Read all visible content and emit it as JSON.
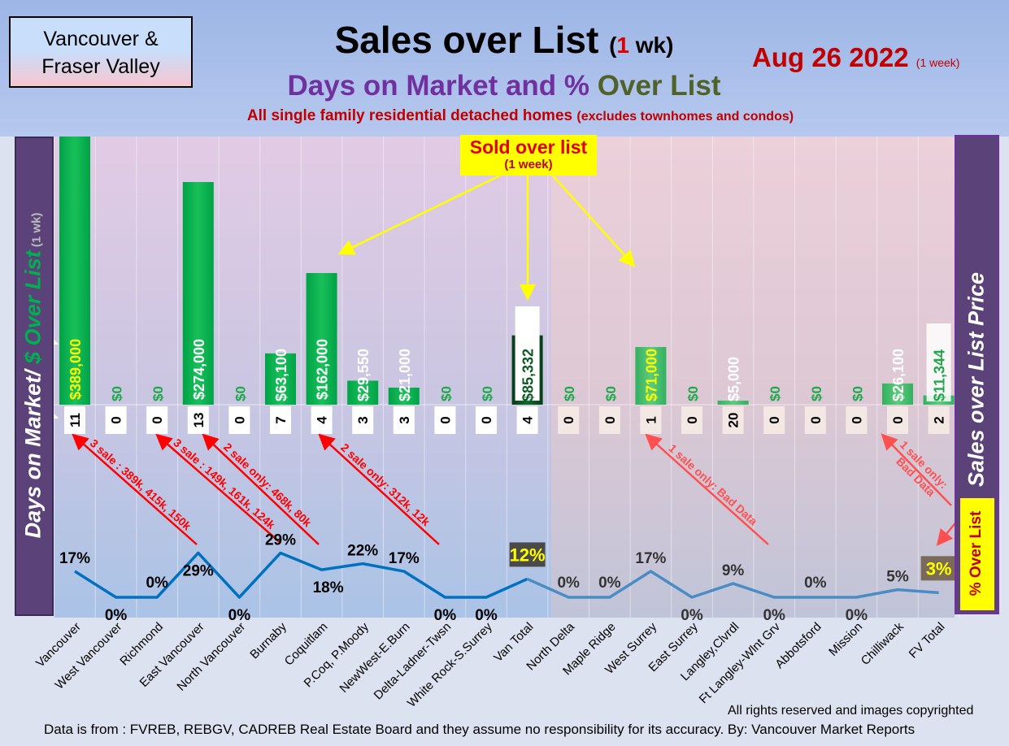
{
  "header": {
    "region": [
      "Vancouver &",
      "Fraser Valley"
    ],
    "title_main": "Sales over List",
    "title_open": "(",
    "title_num": "1",
    "title_close": " wk)",
    "subtitle_a": "Days on Market and % ",
    "subtitle_b": "Over List",
    "date": "Aug 26  2022",
    "date_note": "(1 week)",
    "note_main": "All single family residential detached homes ",
    "note_sub": "(excludes townhomes and condos)"
  },
  "side_labels": {
    "left_a": "Days on Market/ ",
    "left_b": "$ Over List",
    "left_c": " (1 wk)",
    "right": "Sales over List Price",
    "pct": "% Over List"
  },
  "callout": {
    "main": "Sold over list",
    "sub": "(1 week)"
  },
  "colors": {
    "bar_green": "#00b050",
    "van_total": "#0b5a22",
    "line_blue": "#0070c0",
    "annotation_red": "#ff0000",
    "callout_yellow": "#ffff00"
  },
  "chart_data": {
    "type": "bar",
    "categories": [
      "Vancouver",
      "West Vancouver",
      "Richmond",
      "East Vancouver",
      "North Vancouver",
      "Burnaby",
      "Coquitlam",
      "P.Coq, P.Moody",
      "NewWest-E.Burn",
      "Delta-Ladner-Twsn",
      "White Rock-S.Surrey",
      "Van Total",
      "North Delta",
      "Maple Ridge",
      "West Surrey",
      "East Surrey",
      "Langley,Clvrdl",
      "Ft Langley-Wlnt Grv",
      "Abbotsford",
      "Mission",
      "Chilliwack",
      "FV Total"
    ],
    "series": [
      {
        "values": [
          389000,
          0,
          0,
          274000,
          0,
          63100,
          162000,
          29550,
          21000,
          0,
          0,
          85332,
          0,
          0,
          71000,
          0,
          5000,
          0,
          0,
          0,
          26100,
          11344
        ],
        "labels": [
          "$389,000",
          "$0",
          "$0",
          "$274,000",
          "$0",
          "$63,100",
          "$162,000",
          "$29,550",
          "$21,000",
          "$0",
          "$0",
          "$85,332",
          "$0",
          "$0",
          "$71,000",
          "$0",
          "$5,000",
          "$0",
          "$0",
          "$0",
          "$26,100",
          "$11,344"
        ]
      },
      {
        "values": [
          11,
          0,
          0,
          13,
          0,
          7,
          4,
          3,
          3,
          0,
          0,
          4,
          0,
          0,
          1,
          0,
          20,
          0,
          0,
          0,
          0,
          2
        ],
        "labels": [
          "11",
          "0",
          "0",
          "13",
          "0",
          "7",
          "4",
          "3",
          "3",
          "0",
          "0",
          "4",
          "0",
          "0",
          "1",
          "0",
          "20",
          "0",
          "0",
          "0",
          "0",
          "2"
        ]
      },
      {
        "values": [
          17,
          0,
          0,
          29,
          0,
          29,
          18,
          22,
          17,
          0,
          0,
          12,
          0,
          0,
          17,
          0,
          9,
          0,
          0,
          0,
          5,
          3
        ],
        "labels": [
          "17%",
          "0%",
          "0%",
          "29%",
          "0%",
          "29%",
          "18%",
          "22%",
          "17%",
          "0%",
          "0%",
          "12%",
          "0%",
          "0%",
          "17%",
          "0%",
          "9%",
          "0%",
          "0%",
          "0%",
          "5%",
          "3%"
        ]
      }
    ],
    "annotations": [
      "3 sale : 389k, 415k, 150k",
      "3 sale : 149k, 161k, 124k",
      "2 sale only: 468k, 80k",
      "2 sale only: 312k, 12k",
      "1 sale only: Bad Data",
      "1 sale only:",
      "Bad Data"
    ]
  },
  "footer": {
    "rights": "All rights reserved and  images copyrighted",
    "source": "Data is from : FVREB, REBGV, CADREB Real Estate Board and they assume no responsibility for its accuracy. By: Vancouver Market Reports"
  }
}
